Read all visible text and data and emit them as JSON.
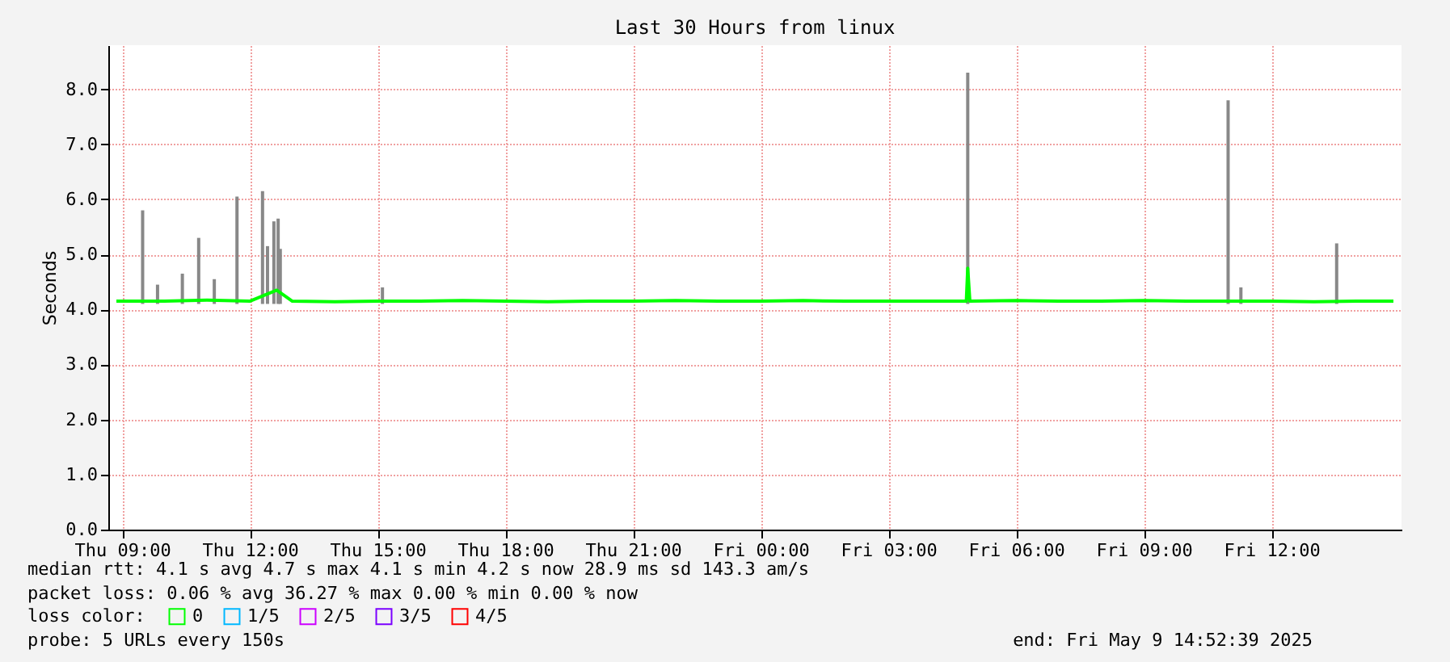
{
  "chart_data": {
    "type": "line",
    "title": "Last 30 Hours from linux",
    "ylabel": "Seconds",
    "xlim": [
      "2025-05-08T08:52",
      "2025-05-09T14:52"
    ],
    "xticks": [
      {
        "value": "2025-05-08T09:00",
        "label": "Thu 09:00"
      },
      {
        "value": "2025-05-08T12:00",
        "label": "Thu 12:00"
      },
      {
        "value": "2025-05-08T15:00",
        "label": "Thu 15:00"
      },
      {
        "value": "2025-05-08T18:00",
        "label": "Thu 18:00"
      },
      {
        "value": "2025-05-08T21:00",
        "label": "Thu 21:00"
      },
      {
        "value": "2025-05-09T00:00",
        "label": "Fri 00:00"
      },
      {
        "value": "2025-05-09T03:00",
        "label": "Fri 03:00"
      },
      {
        "value": "2025-05-09T06:00",
        "label": "Fri 06:00"
      },
      {
        "value": "2025-05-09T09:00",
        "label": "Fri 09:00"
      },
      {
        "value": "2025-05-09T12:00",
        "label": "Fri 12:00"
      }
    ],
    "ylim": [
      0,
      8.8
    ],
    "yticks": [
      {
        "value": 0,
        "label": "0.0"
      },
      {
        "value": 1,
        "label": "1.0"
      },
      {
        "value": 2,
        "label": "2.0"
      },
      {
        "value": 3,
        "label": "3.0"
      },
      {
        "value": 4,
        "label": "4.0"
      },
      {
        "value": 5,
        "label": "5.0"
      },
      {
        "value": 6,
        "label": "6.0"
      },
      {
        "value": 7,
        "label": "7.0"
      },
      {
        "value": 8,
        "label": "8.0"
      }
    ],
    "grid": true,
    "legend": "bottom",
    "legend_title": "loss color:",
    "marker": "none",
    "line_style": "solid",
    "series": [
      {
        "type": "bar",
        "color": "#888888",
        "x": [
          "2025-05-08T09:29",
          "2025-05-08T09:50",
          "2025-05-08T10:25",
          "2025-05-08T10:48",
          "2025-05-08T11:10",
          "2025-05-08T11:42",
          "2025-05-08T12:18",
          "2025-05-08T12:25",
          "2025-05-08T12:34",
          "2025-05-08T12:40",
          "2025-05-08T12:43",
          "2025-05-08T15:07",
          "2025-05-09T04:52",
          "2025-05-09T10:59",
          "2025-05-09T11:17",
          "2025-05-09T13:32"
        ],
        "base": [
          4.1,
          4.1,
          4.1,
          4.1,
          4.1,
          4.1,
          4.1,
          4.1,
          4.1,
          4.1,
          4.1,
          4.1,
          4.1,
          4.1,
          4.1,
          4.1
        ],
        "values": [
          1.7,
          0.35,
          0.55,
          1.2,
          0.45,
          1.95,
          2.05,
          1.05,
          1.5,
          1.55,
          1.0,
          0.3,
          4.2,
          3.7,
          0.3,
          1.1
        ]
      },
      {
        "name": "0",
        "color": "#00ff00",
        "x": [
          "2025-05-08T08:52",
          "2025-05-08T10:00",
          "2025-05-08T11:00",
          "2025-05-08T12:00",
          "2025-05-08T12:38",
          "2025-05-08T13:00",
          "2025-05-08T14:00",
          "2025-05-08T15:00",
          "2025-05-08T16:00",
          "2025-05-08T17:00",
          "2025-05-08T18:00",
          "2025-05-08T19:00",
          "2025-05-08T20:00",
          "2025-05-08T21:00",
          "2025-05-08T22:00",
          "2025-05-08T23:00",
          "2025-05-09T00:00",
          "2025-05-09T01:00",
          "2025-05-09T02:00",
          "2025-05-09T03:00",
          "2025-05-09T04:00",
          "2025-05-09T04:50",
          "2025-05-09T04:52",
          "2025-05-09T04:55",
          "2025-05-09T06:00",
          "2025-05-09T07:00",
          "2025-05-09T08:00",
          "2025-05-09T09:00",
          "2025-05-09T10:00",
          "2025-05-09T11:00",
          "2025-05-09T12:00",
          "2025-05-09T13:00",
          "2025-05-09T14:00",
          "2025-05-09T14:52"
        ],
        "values": [
          4.15,
          4.15,
          4.17,
          4.15,
          4.35,
          4.15,
          4.14,
          4.15,
          4.15,
          4.16,
          4.15,
          4.14,
          4.15,
          4.15,
          4.16,
          4.15,
          4.15,
          4.16,
          4.15,
          4.15,
          4.15,
          4.15,
          4.75,
          4.15,
          4.16,
          4.15,
          4.15,
          4.16,
          4.15,
          4.15,
          4.15,
          4.14,
          4.15,
          4.15
        ]
      },
      {
        "name": "1/5",
        "color": "#00b8ff"
      },
      {
        "name": "2/5",
        "color": "#cc00ff"
      },
      {
        "name": "3/5",
        "color": "#7b00ff"
      },
      {
        "name": "4/5",
        "color": "#ff0000"
      }
    ],
    "annotations": [
      "median rtt:  4.1  s avg  4.7  s max  4.1  s min  4.2  s now  28.9 ms sd  143.3  am/s",
      "packet loss: 0.06 % avg  36.27 % max  0.00 % min  0.00 % now",
      "probe:       5 URLs every 150s",
      "end: Fri May  9 14:52:39 2025"
    ]
  }
}
